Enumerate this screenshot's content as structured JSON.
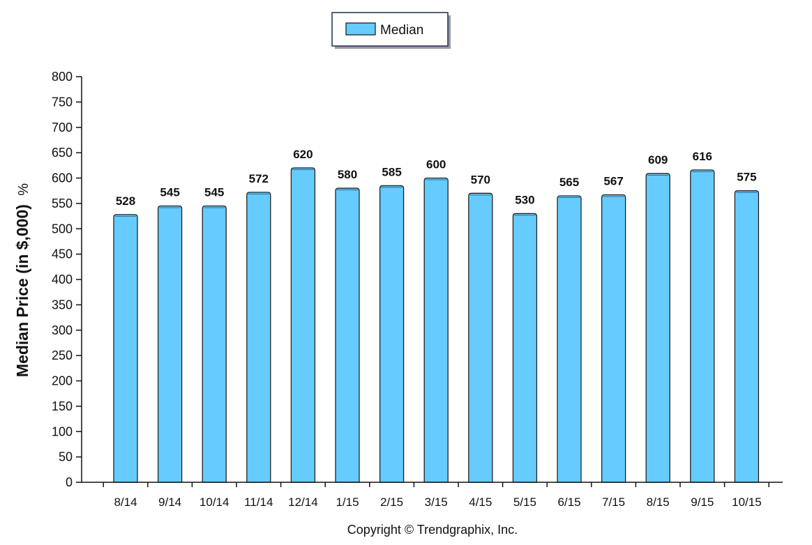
{
  "chart_data": {
    "type": "bar",
    "categories": [
      "8/14",
      "9/14",
      "10/14",
      "11/14",
      "12/14",
      "1/15",
      "2/15",
      "3/15",
      "4/15",
      "5/15",
      "6/15",
      "7/15",
      "8/15",
      "9/15",
      "10/15"
    ],
    "series": [
      {
        "name": "Median",
        "values": [
          528,
          545,
          545,
          572,
          620,
          580,
          585,
          600,
          570,
          530,
          565,
          567,
          609,
          616,
          575
        ],
        "color": "#66ccff"
      }
    ],
    "ylabel": "Median Price (in $,000)",
    "ylabel_suffix": "%",
    "ylim": [
      0,
      800
    ],
    "yticks": [
      0,
      50,
      100,
      150,
      200,
      250,
      300,
      350,
      400,
      450,
      500,
      550,
      600,
      650,
      700,
      750,
      800
    ],
    "grid": false,
    "legend_position": "top-center",
    "data_labels": true
  },
  "footer": {
    "copyright": "Copyright © Trendgraphix, Inc."
  }
}
